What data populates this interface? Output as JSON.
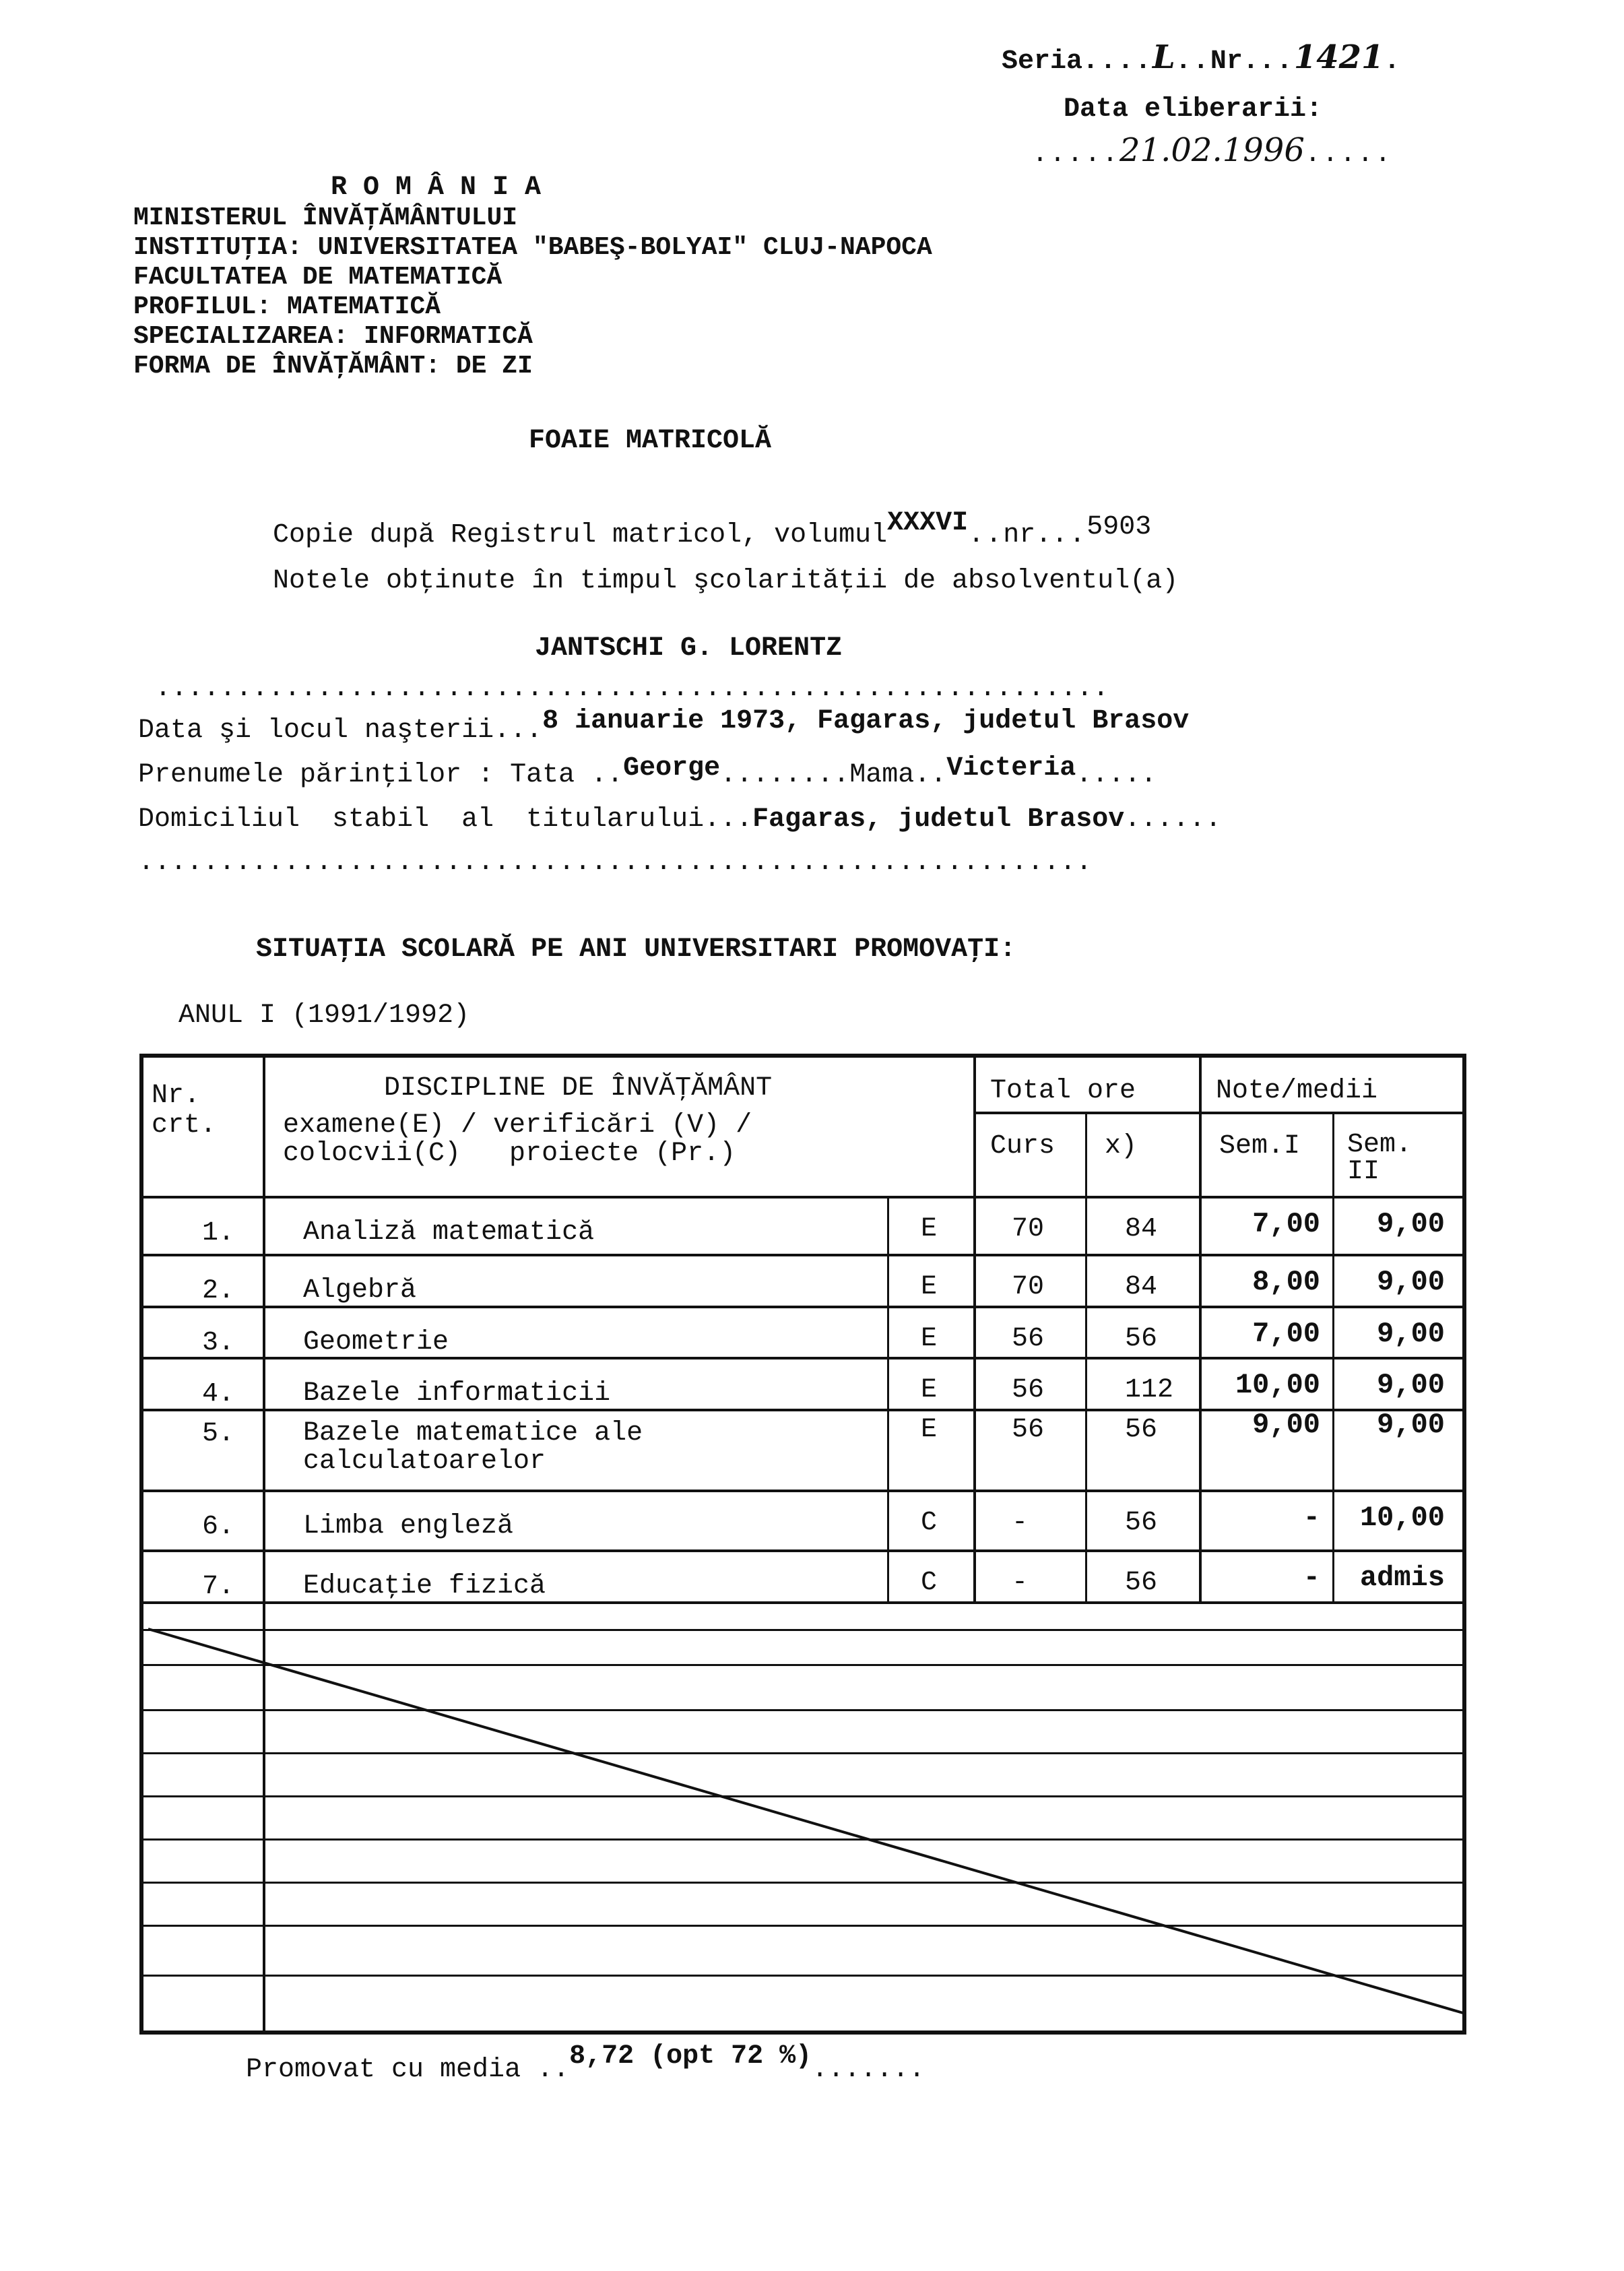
{
  "header": {
    "seria_label": "Seria",
    "seria_value": "L",
    "nr_label": "Nr.",
    "nr_value": "1421",
    "issue_date_label": "Data eliberarii:",
    "issue_date_value": "21.02.1996",
    "country": "R O M Â N I A",
    "lines": [
      "MINISTERUL ÎNVĂŢĂMÂNTULUI",
      "INSTITUŢIA: UNIVERSITATEA \"BABEŞ-BOLYAI\" CLUJ-NAPOCA",
      "FACULTATEA DE MATEMATICĂ",
      "PROFILUL: MATEMATICĂ",
      "SPECIALIZAREA: INFORMATICĂ",
      "FORMA DE ÎNVĂŢĂMÂNT: DE ZI"
    ]
  },
  "title": "FOAIE MATRICOLĂ",
  "register": {
    "copy_label": "Copie după Registrul matricol, volumul",
    "volume": "XXXVI",
    "nr_label": "nr.",
    "nr": "5903",
    "notes_label": "Notele obţinute în timpul şcolarităţii de absolventul(a)"
  },
  "student": {
    "name": "JANTSCHI G. LORENTZ",
    "birth_label": "Data şi locul naşterii",
    "birth_value": "8 ianuarie 1973, Fagaras, judetul Brasov",
    "parents_label": "Prenumele părinţilor : Tata",
    "father": "George",
    "mother_label": "Mama",
    "mother": "Victeria",
    "domicile_label": "Domiciliul  stabil  al  titularului",
    "domicile_value": "Fagaras, judetul Brasov"
  },
  "situation_title": "SITUAŢIA SCOLARĂ PE ANI UNIVERSITARI PROMOVAŢI:",
  "year_label": "ANUL I (1991/1992)",
  "table": {
    "headers": {
      "nr": "Nr.\ncrt.",
      "discipline": "DISCIPLINE DE ÎNVĂŢĂMÂNT",
      "discipline_sub": "examene(E) / verificări (V) /\ncolocvii(C)   proiecte (Pr.)",
      "total_ore": "Total ore",
      "curs": "Curs",
      "x": "x)",
      "note": "Note/medii",
      "sem1": "Sem.I",
      "sem2": "Sem.\nII"
    },
    "rows": [
      {
        "nr": "1.",
        "name": "Analiză matematică",
        "type": "E",
        "curs": "70",
        "x": "84",
        "sem1": "7,00",
        "sem2": "9,00"
      },
      {
        "nr": "2.",
        "name": "Algebră",
        "type": "E",
        "curs": "70",
        "x": "84",
        "sem1": "8,00",
        "sem2": "9,00"
      },
      {
        "nr": "3.",
        "name": "Geometrie",
        "type": "E",
        "curs": "56",
        "x": "56",
        "sem1": "7,00",
        "sem2": "9,00"
      },
      {
        "nr": "4.",
        "name": "Bazele informaticii",
        "type": "E",
        "curs": "56",
        "x": "112",
        "sem1": "10,00",
        "sem2": "9,00"
      },
      {
        "nr": "5.",
        "name": "Bazele matematice ale\ncalculatoarelor",
        "type": "E",
        "curs": "56",
        "x": "56",
        "sem1": "9,00",
        "sem2": "9,00"
      },
      {
        "nr": "6.",
        "name": "Limba engleză",
        "type": "C",
        "curs": "-",
        "x": "56",
        "sem1": "-",
        "sem2": "10,00"
      },
      {
        "nr": "7.",
        "name": "Educaţie fizică",
        "type": "C",
        "curs": "-",
        "x": "56",
        "sem1": "-",
        "sem2": "admis"
      }
    ]
  },
  "footer": {
    "promoted_label": "Promovat cu media",
    "average": "8,72 (opt 72 %)"
  }
}
